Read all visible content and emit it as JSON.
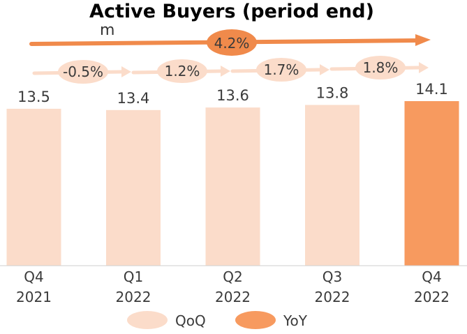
{
  "chart_data": {
    "type": "bar",
    "title": "Active Buyers (period end)",
    "unit": "m",
    "categories": [
      {
        "line1": "Q4",
        "line2": "2021"
      },
      {
        "line1": "Q1",
        "line2": "2022"
      },
      {
        "line1": "Q2",
        "line2": "2022"
      },
      {
        "line1": "Q3",
        "line2": "2022"
      },
      {
        "line1": "Q4",
        "line2": "2022"
      }
    ],
    "values": [
      13.5,
      13.4,
      13.6,
      13.8,
      14.1
    ],
    "value_labels": [
      "13.5",
      "13.4",
      "13.6",
      "13.8",
      "14.1"
    ],
    "highlight_index": 4,
    "qoq": [
      "-0.5%",
      "1.2%",
      "1.7%",
      "1.8%"
    ],
    "yoy": "4.2%",
    "legend": {
      "qoq": "QoQ",
      "yoy": "YoY"
    },
    "colors": {
      "bar": "#fbdcca",
      "highlight": "#f79a5f",
      "qoq": "#fbdcca",
      "yoy": "#f08a4b",
      "axis": "#cfcfcf",
      "text": "#3a3a3a"
    }
  }
}
